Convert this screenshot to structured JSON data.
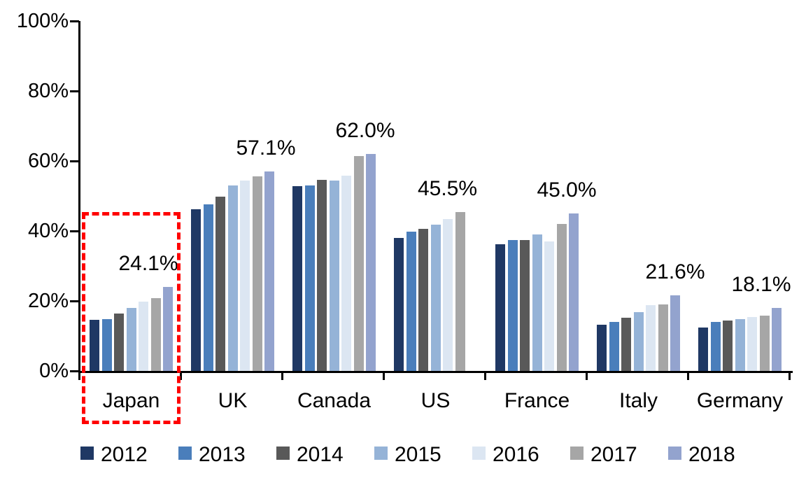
{
  "chart_data": {
    "type": "bar",
    "title": "",
    "unit": "%",
    "categories": [
      "Japan",
      "UK",
      "Canada",
      "US",
      "France",
      "Italy",
      "Germany"
    ],
    "series": [
      {
        "name": "2012",
        "color": "#1F3864",
        "values": [
          14.6,
          46.3,
          52.8,
          38.0,
          36.3,
          13.3,
          12.5
        ]
      },
      {
        "name": "2013",
        "color": "#4A7EBB",
        "values": [
          14.9,
          47.6,
          53.1,
          39.9,
          37.5,
          14.1,
          14.0
        ]
      },
      {
        "name": "2014",
        "color": "#595959",
        "values": [
          16.5,
          49.8,
          54.7,
          40.7,
          37.4,
          15.3,
          14.4
        ]
      },
      {
        "name": "2015",
        "color": "#95B3D7",
        "values": [
          18.0,
          53.0,
          54.5,
          41.9,
          39.0,
          16.8,
          14.9
        ]
      },
      {
        "name": "2016",
        "color": "#DCE6F2",
        "values": [
          19.9,
          54.5,
          55.9,
          43.4,
          37.1,
          18.9,
          15.5
        ]
      },
      {
        "name": "2017",
        "color": "#A6A6A6",
        "values": [
          20.9,
          55.6,
          61.4,
          45.5,
          42.1,
          19.1,
          15.9
        ]
      },
      {
        "name": "2018",
        "color": "#93A3CE",
        "values": [
          24.1,
          57.1,
          62.0,
          null,
          45.0,
          21.6,
          18.1
        ]
      }
    ],
    "data_labels": [
      "24.1%",
      "57.1%",
      "62.0%",
      "45.5%",
      "45.0%",
      "21.6%",
      "18.1%"
    ],
    "y_axis": {
      "min": 0,
      "max": 100,
      "tick_values": [
        0,
        20,
        40,
        60,
        80,
        100
      ],
      "tick_labels": [
        "0%",
        "20%",
        "40%",
        "60%",
        "80%",
        "100%"
      ],
      "grid": false
    },
    "legend": {
      "position": "bottom",
      "labels": [
        "2012",
        "2013",
        "2014",
        "2015",
        "2016",
        "2017",
        "2018"
      ]
    },
    "highlight": {
      "category": "Japan",
      "style": "dashed-rectangle",
      "color": "#FF0000"
    }
  }
}
